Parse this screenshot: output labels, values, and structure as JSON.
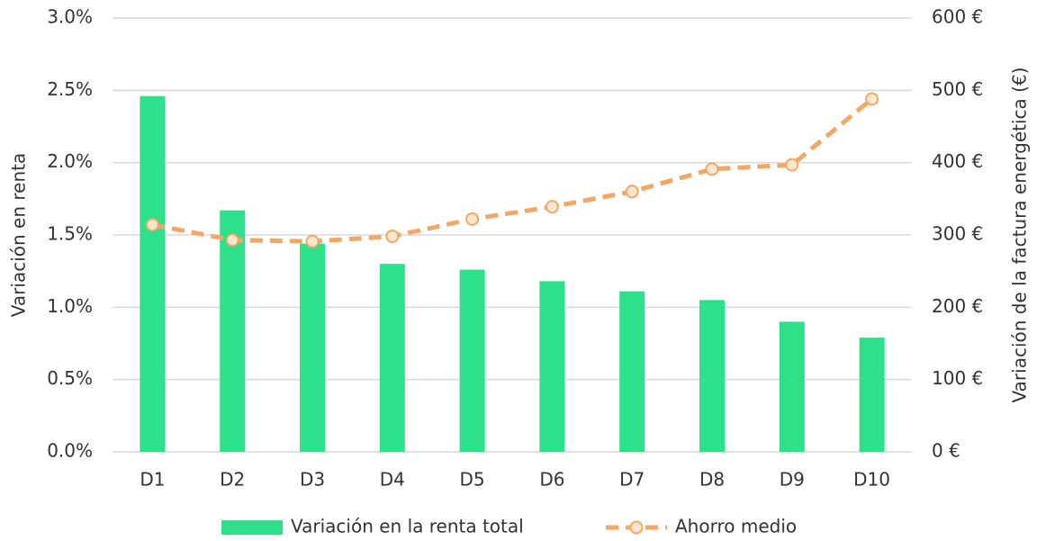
{
  "chart_data": {
    "type": "bar",
    "categories": [
      "D1",
      "D2",
      "D3",
      "D4",
      "D5",
      "D6",
      "D7",
      "D8",
      "D9",
      "D10"
    ],
    "series": [
      {
        "name": "Variación en la renta total",
        "type": "bar",
        "color": "#2ee08a",
        "axis": "y",
        "values": [
          2.46,
          1.67,
          1.44,
          1.3,
          1.26,
          1.18,
          1.11,
          1.05,
          0.9,
          0.79
        ]
      },
      {
        "name": "Ahorro medio",
        "type": "line",
        "color": "#f2a766",
        "axis": "y2",
        "values": [
          314,
          293,
          291,
          298,
          322,
          339,
          360,
          391,
          397,
          488
        ]
      }
    ],
    "ylabel": "Variación en renta",
    "y2label": "Variación de la factura energética (€)",
    "ylim": [
      0,
      3
    ],
    "yticks": [
      {
        "value": 0,
        "label": "0.0%"
      },
      {
        "value": 0.5,
        "label": "0.5%"
      },
      {
        "value": 1,
        "label": "1.0%"
      },
      {
        "value": 1.5,
        "label": "1.5%"
      },
      {
        "value": 2,
        "label": "2.0%"
      },
      {
        "value": 2.5,
        "label": "2.5%"
      },
      {
        "value": 3,
        "label": "3.0%"
      }
    ],
    "y2lim": [
      0,
      600
    ],
    "y2ticks": [
      {
        "value": 0,
        "label": "0 €"
      },
      {
        "value": 100,
        "label": "100 €"
      },
      {
        "value": 200,
        "label": "200 €"
      },
      {
        "value": 300,
        "label": "300 €"
      },
      {
        "value": 400,
        "label": "400 €"
      },
      {
        "value": 500,
        "label": "500 €"
      },
      {
        "value": 600,
        "label": "600 €"
      }
    ],
    "grid": true,
    "legend": "bottom"
  }
}
